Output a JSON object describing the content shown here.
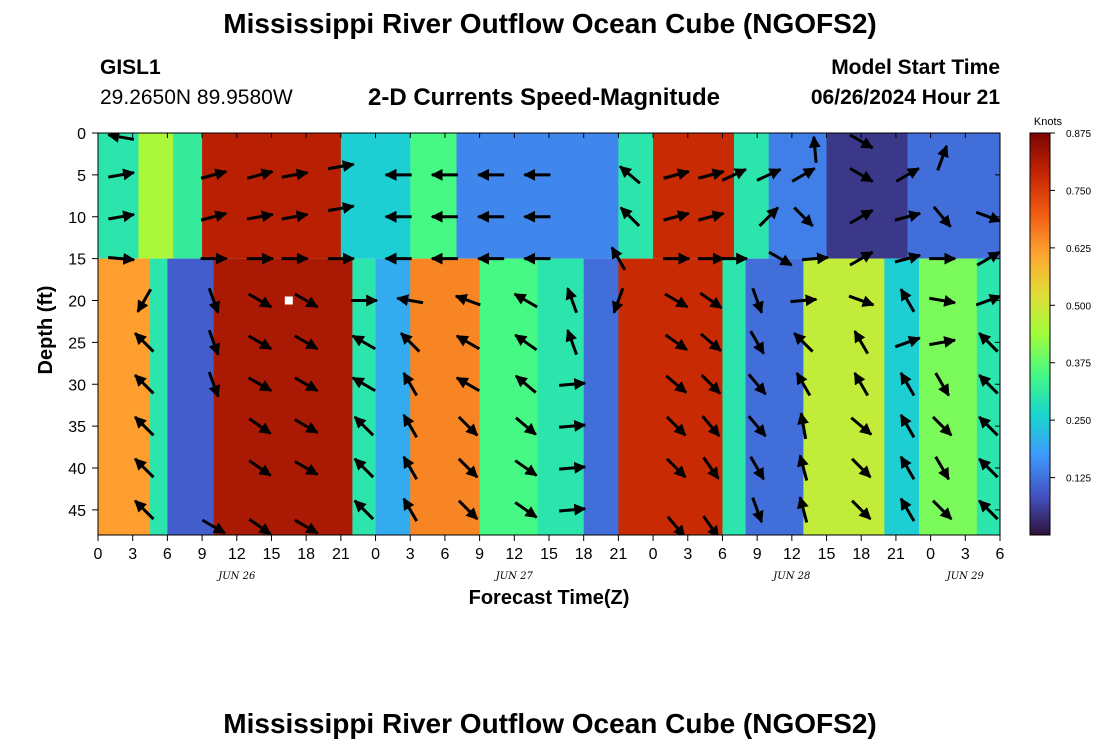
{
  "header": {
    "title": "Mississippi River Outflow Ocean Cube (NGOFS2)",
    "station": "GISL1",
    "coords": "29.2650N  89.9580W",
    "subtitle": "2-D Currents Speed-Magnitude",
    "start_label": "Model Start Time",
    "start_value": "06/26/2024 Hour 21"
  },
  "footer": {
    "title": "Mississippi River Outflow Ocean Cube (NGOFS2)"
  },
  "colors": {
    "scale": [
      "#30123b",
      "#4454c4",
      "#3e9bfe",
      "#18d6cb",
      "#46f884",
      "#a2fc3c",
      "#e1dd37",
      "#fea431",
      "#f05b12",
      "#c42503",
      "#7a0403"
    ]
  },
  "chart_data": {
    "type": "heatmap",
    "title": "2-D Currents Speed-Magnitude",
    "xlabel": "Forecast Time(Z)",
    "ylabel": "Depth (ft)",
    "xlim": [
      0,
      78
    ],
    "ylim": [
      48,
      0
    ],
    "x_ticks": [
      0,
      3,
      6,
      9,
      12,
      15,
      18,
      21,
      24,
      27,
      30,
      33,
      36,
      39,
      42,
      45,
      48,
      51,
      54,
      57,
      60,
      63,
      66,
      69,
      72,
      75,
      78
    ],
    "x_tick_labels": [
      "0",
      "3",
      "6",
      "9",
      "12",
      "15",
      "18",
      "21",
      "0",
      "3",
      "6",
      "9",
      "12",
      "15",
      "18",
      "21",
      "0",
      "3",
      "6",
      "9",
      "12",
      "15",
      "18",
      "21",
      "0",
      "3",
      "6"
    ],
    "date_labels": [
      {
        "x": 12,
        "label": "JUN 26"
      },
      {
        "x": 36,
        "label": "JUN 27"
      },
      {
        "x": 60,
        "label": "JUN 28"
      },
      {
        "x": 75,
        "label": "JUN 29"
      }
    ],
    "y_ticks": [
      0,
      5,
      10,
      15,
      20,
      25,
      30,
      35,
      40,
      45
    ],
    "y_tick_labels": [
      "0",
      "5",
      "10",
      "15",
      "20",
      "25",
      "30",
      "35",
      "40",
      "45"
    ],
    "colorbar": {
      "label": "Knots",
      "min": 0,
      "max": 0.875,
      "ticks": [
        0.125,
        0.25,
        0.375,
        0.5,
        0.625,
        0.75,
        0.875
      ],
      "tick_labels": [
        "0.125",
        "0.250",
        "0.375",
        "0.500",
        "0.625",
        "0.750",
        "0.875"
      ]
    },
    "upper_layer": {
      "depth_range": [
        0,
        15
      ],
      "segments": [
        {
          "x": [
            0,
            3.5
          ],
          "speed": 0.3
        },
        {
          "x": [
            3.5,
            6.5
          ],
          "speed": 0.45
        },
        {
          "x": [
            6.5,
            9
          ],
          "speed": 0.32
        },
        {
          "x": [
            9,
            21
          ],
          "speed": 0.8
        },
        {
          "x": [
            21,
            27
          ],
          "speed": 0.25
        },
        {
          "x": [
            27,
            31
          ],
          "speed": 0.35
        },
        {
          "x": [
            31,
            45
          ],
          "speed": 0.15
        },
        {
          "x": [
            45,
            48
          ],
          "speed": 0.3
        },
        {
          "x": [
            48,
            55
          ],
          "speed": 0.78
        },
        {
          "x": [
            55,
            58
          ],
          "speed": 0.3
        },
        {
          "x": [
            58,
            63
          ],
          "speed": 0.14
        },
        {
          "x": [
            63,
            70
          ],
          "speed": 0.05
        },
        {
          "x": [
            70,
            78
          ],
          "speed": 0.12
        }
      ]
    },
    "lower_layer": {
      "depth_range": [
        15,
        48
      ],
      "segments": [
        {
          "x": [
            0,
            4.5
          ],
          "speed": 0.62
        },
        {
          "x": [
            4.5,
            6
          ],
          "speed": 0.3
        },
        {
          "x": [
            6,
            10
          ],
          "speed": 0.1
        },
        {
          "x": [
            10,
            22
          ],
          "speed": 0.82
        },
        {
          "x": [
            22,
            24
          ],
          "speed": 0.3
        },
        {
          "x": [
            24,
            27
          ],
          "speed": 0.2
        },
        {
          "x": [
            27,
            33
          ],
          "speed": 0.65
        },
        {
          "x": [
            33,
            38
          ],
          "speed": 0.35
        },
        {
          "x": [
            38,
            42
          ],
          "speed": 0.3
        },
        {
          "x": [
            42,
            45
          ],
          "speed": 0.12
        },
        {
          "x": [
            45,
            54
          ],
          "speed": 0.78
        },
        {
          "x": [
            54,
            56
          ],
          "speed": 0.3
        },
        {
          "x": [
            56,
            61
          ],
          "speed": 0.12
        },
        {
          "x": [
            61,
            68
          ],
          "speed": 0.48
        },
        {
          "x": [
            68,
            71
          ],
          "speed": 0.25
        },
        {
          "x": [
            71,
            76
          ],
          "speed": 0.4
        },
        {
          "x": [
            76,
            78
          ],
          "speed": 0.3
        }
      ]
    },
    "vectors": [
      {
        "x": 2,
        "depth": 0.5,
        "dir": 170
      },
      {
        "x": 2,
        "depth": 5,
        "dir": 10
      },
      {
        "x": 2,
        "depth": 10,
        "dir": 10
      },
      {
        "x": 2,
        "depth": 15,
        "dir": -5
      },
      {
        "x": 4,
        "depth": 20,
        "dir": -120
      },
      {
        "x": 4,
        "depth": 25,
        "dir": 135
      },
      {
        "x": 4,
        "depth": 30,
        "dir": 135
      },
      {
        "x": 4,
        "depth": 35,
        "dir": 135
      },
      {
        "x": 4,
        "depth": 40,
        "dir": 135
      },
      {
        "x": 4,
        "depth": 45,
        "dir": 135
      },
      {
        "x": 10,
        "depth": 5,
        "dir": 15
      },
      {
        "x": 10,
        "depth": 10,
        "dir": 15
      },
      {
        "x": 10,
        "depth": 15,
        "dir": 0
      },
      {
        "x": 10,
        "depth": 20,
        "dir": -70
      },
      {
        "x": 10,
        "depth": 25,
        "dir": -70
      },
      {
        "x": 10,
        "depth": 30,
        "dir": -70
      },
      {
        "x": 10,
        "depth": 47,
        "dir": -30
      },
      {
        "x": 14,
        "depth": 5,
        "dir": 15
      },
      {
        "x": 14,
        "depth": 10,
        "dir": 10
      },
      {
        "x": 14,
        "depth": 15,
        "dir": 0
      },
      {
        "x": 14,
        "depth": 20,
        "dir": -30
      },
      {
        "x": 14,
        "depth": 25,
        "dir": -30
      },
      {
        "x": 14,
        "depth": 30,
        "dir": -30
      },
      {
        "x": 14,
        "depth": 35,
        "dir": -35
      },
      {
        "x": 14,
        "depth": 40,
        "dir": -35
      },
      {
        "x": 14,
        "depth": 47,
        "dir": -35
      },
      {
        "x": 17,
        "depth": 5,
        "dir": 10
      },
      {
        "x": 17,
        "depth": 10,
        "dir": 10
      },
      {
        "x": 17,
        "depth": 15,
        "dir": 0
      },
      {
        "x": 18,
        "depth": 20,
        "dir": -30
      },
      {
        "x": 18,
        "depth": 25,
        "dir": -30
      },
      {
        "x": 18,
        "depth": 30,
        "dir": -30
      },
      {
        "x": 18,
        "depth": 35,
        "dir": -30
      },
      {
        "x": 18,
        "depth": 40,
        "dir": -30
      },
      {
        "x": 18,
        "depth": 47,
        "dir": -30
      },
      {
        "x": 21,
        "depth": 4,
        "dir": 10
      },
      {
        "x": 21,
        "depth": 9,
        "dir": 10
      },
      {
        "x": 21,
        "depth": 15,
        "dir": 0
      },
      {
        "x": 23,
        "depth": 20,
        "dir": 0
      },
      {
        "x": 23,
        "depth": 25,
        "dir": 150
      },
      {
        "x": 23,
        "depth": 30,
        "dir": 150
      },
      {
        "x": 23,
        "depth": 35,
        "dir": 135
      },
      {
        "x": 23,
        "depth": 40,
        "dir": 135
      },
      {
        "x": 23,
        "depth": 45,
        "dir": 135
      },
      {
        "x": 26,
        "depth": 5,
        "dir": 180
      },
      {
        "x": 26,
        "depth": 10,
        "dir": 180
      },
      {
        "x": 26,
        "depth": 15,
        "dir": 180
      },
      {
        "x": 27,
        "depth": 20,
        "dir": 170
      },
      {
        "x": 27,
        "depth": 25,
        "dir": 135
      },
      {
        "x": 27,
        "depth": 30,
        "dir": 120
      },
      {
        "x": 27,
        "depth": 35,
        "dir": 120
      },
      {
        "x": 27,
        "depth": 40,
        "dir": 120
      },
      {
        "x": 27,
        "depth": 45,
        "dir": 120
      },
      {
        "x": 30,
        "depth": 5,
        "dir": 180
      },
      {
        "x": 30,
        "depth": 10,
        "dir": 180
      },
      {
        "x": 30,
        "depth": 15,
        "dir": 180
      },
      {
        "x": 32,
        "depth": 20,
        "dir": 160
      },
      {
        "x": 32,
        "depth": 25,
        "dir": 150
      },
      {
        "x": 32,
        "depth": 30,
        "dir": 150
      },
      {
        "x": 32,
        "depth": 35,
        "dir": -45
      },
      {
        "x": 32,
        "depth": 40,
        "dir": -45
      },
      {
        "x": 32,
        "depth": 45,
        "dir": -45
      },
      {
        "x": 34,
        "depth": 5,
        "dir": 180
      },
      {
        "x": 34,
        "depth": 10,
        "dir": 180
      },
      {
        "x": 34,
        "depth": 15,
        "dir": 180
      },
      {
        "x": 37,
        "depth": 20,
        "dir": 150
      },
      {
        "x": 37,
        "depth": 25,
        "dir": 145
      },
      {
        "x": 37,
        "depth": 30,
        "dir": 140
      },
      {
        "x": 37,
        "depth": 35,
        "dir": -40
      },
      {
        "x": 37,
        "depth": 40,
        "dir": -35
      },
      {
        "x": 37,
        "depth": 45,
        "dir": -35
      },
      {
        "x": 38,
        "depth": 5,
        "dir": 180
      },
      {
        "x": 38,
        "depth": 10,
        "dir": 180
      },
      {
        "x": 38,
        "depth": 15,
        "dir": 180
      },
      {
        "x": 41,
        "depth": 20,
        "dir": 110
      },
      {
        "x": 41,
        "depth": 25,
        "dir": 110
      },
      {
        "x": 41,
        "depth": 30,
        "dir": 5
      },
      {
        "x": 41,
        "depth": 35,
        "dir": 5
      },
      {
        "x": 41,
        "depth": 40,
        "dir": 5
      },
      {
        "x": 41,
        "depth": 45,
        "dir": 5
      },
      {
        "x": 45,
        "depth": 20,
        "dir": -110
      },
      {
        "x": 45,
        "depth": 15,
        "dir": 120
      },
      {
        "x": 46,
        "depth": 5,
        "dir": 140
      },
      {
        "x": 46,
        "depth": 10,
        "dir": 135
      },
      {
        "x": 50,
        "depth": 5,
        "dir": 15
      },
      {
        "x": 50,
        "depth": 10,
        "dir": 15
      },
      {
        "x": 50,
        "depth": 15,
        "dir": 0
      },
      {
        "x": 50,
        "depth": 20,
        "dir": -30
      },
      {
        "x": 50,
        "depth": 25,
        "dir": -35
      },
      {
        "x": 50,
        "depth": 30,
        "dir": -40
      },
      {
        "x": 50,
        "depth": 35,
        "dir": -45
      },
      {
        "x": 50,
        "depth": 40,
        "dir": -45
      },
      {
        "x": 50,
        "depth": 47,
        "dir": -50
      },
      {
        "x": 53,
        "depth": 5,
        "dir": 15
      },
      {
        "x": 53,
        "depth": 10,
        "dir": 15
      },
      {
        "x": 53,
        "depth": 15,
        "dir": 0
      },
      {
        "x": 53,
        "depth": 20,
        "dir": -35
      },
      {
        "x": 53,
        "depth": 25,
        "dir": -40
      },
      {
        "x": 53,
        "depth": 30,
        "dir": -45
      },
      {
        "x": 53,
        "depth": 35,
        "dir": -50
      },
      {
        "x": 53,
        "depth": 40,
        "dir": -55
      },
      {
        "x": 53,
        "depth": 47,
        "dir": -55
      },
      {
        "x": 55,
        "depth": 5,
        "dir": 25
      },
      {
        "x": 55,
        "depth": 15,
        "dir": 0
      },
      {
        "x": 57,
        "depth": 20,
        "dir": -70
      },
      {
        "x": 57,
        "depth": 25,
        "dir": -60
      },
      {
        "x": 57,
        "depth": 30,
        "dir": -50
      },
      {
        "x": 57,
        "depth": 35,
        "dir": -50
      },
      {
        "x": 57,
        "depth": 40,
        "dir": -60
      },
      {
        "x": 57,
        "depth": 45,
        "dir": -70
      },
      {
        "x": 58,
        "depth": 5,
        "dir": 25
      },
      {
        "x": 58,
        "depth": 10,
        "dir": 45
      },
      {
        "x": 59,
        "depth": 15,
        "dir": -30
      },
      {
        "x": 61,
        "depth": 5,
        "dir": 30
      },
      {
        "x": 61,
        "depth": 10,
        "dir": -45
      },
      {
        "x": 61,
        "depth": 20,
        "dir": 5
      },
      {
        "x": 61,
        "depth": 25,
        "dir": 135
      },
      {
        "x": 61,
        "depth": 30,
        "dir": 120
      },
      {
        "x": 61,
        "depth": 35,
        "dir": 100
      },
      {
        "x": 61,
        "depth": 40,
        "dir": 105
      },
      {
        "x": 61,
        "depth": 45,
        "dir": 105
      },
      {
        "x": 62,
        "depth": 2,
        "dir": 95
      },
      {
        "x": 62,
        "depth": 15,
        "dir": 5
      },
      {
        "x": 66,
        "depth": 1,
        "dir": -30
      },
      {
        "x": 66,
        "depth": 5,
        "dir": -30
      },
      {
        "x": 66,
        "depth": 10,
        "dir": 30
      },
      {
        "x": 66,
        "depth": 15,
        "dir": 30
      },
      {
        "x": 66,
        "depth": 20,
        "dir": -20
      },
      {
        "x": 66,
        "depth": 25,
        "dir": 120
      },
      {
        "x": 66,
        "depth": 30,
        "dir": 120
      },
      {
        "x": 66,
        "depth": 35,
        "dir": -40
      },
      {
        "x": 66,
        "depth": 40,
        "dir": -45
      },
      {
        "x": 66,
        "depth": 45,
        "dir": -45
      },
      {
        "x": 70,
        "depth": 5,
        "dir": 30
      },
      {
        "x": 70,
        "depth": 10,
        "dir": 15
      },
      {
        "x": 70,
        "depth": 15,
        "dir": 15
      },
      {
        "x": 70,
        "depth": 20,
        "dir": 120
      },
      {
        "x": 70,
        "depth": 25,
        "dir": 20
      },
      {
        "x": 70,
        "depth": 30,
        "dir": 120
      },
      {
        "x": 70,
        "depth": 35,
        "dir": 120
      },
      {
        "x": 70,
        "depth": 40,
        "dir": 120
      },
      {
        "x": 70,
        "depth": 45,
        "dir": 120
      },
      {
        "x": 73,
        "depth": 3,
        "dir": 70
      },
      {
        "x": 73,
        "depth": 10,
        "dir": -50
      },
      {
        "x": 73,
        "depth": 15,
        "dir": 0
      },
      {
        "x": 73,
        "depth": 20,
        "dir": -10
      },
      {
        "x": 73,
        "depth": 25,
        "dir": 10
      },
      {
        "x": 73,
        "depth": 30,
        "dir": -60
      },
      {
        "x": 73,
        "depth": 35,
        "dir": -45
      },
      {
        "x": 73,
        "depth": 40,
        "dir": -60
      },
      {
        "x": 73,
        "depth": 45,
        "dir": -45
      },
      {
        "x": 77,
        "depth": 10,
        "dir": -20
      },
      {
        "x": 77,
        "depth": 15,
        "dir": 30
      },
      {
        "x": 77,
        "depth": 20,
        "dir": 20
      },
      {
        "x": 77,
        "depth": 25,
        "dir": 135
      },
      {
        "x": 77,
        "depth": 30,
        "dir": 135
      },
      {
        "x": 77,
        "depth": 35,
        "dir": 135
      },
      {
        "x": 77,
        "depth": 40,
        "dir": 135
      },
      {
        "x": 77,
        "depth": 45,
        "dir": 135
      }
    ],
    "marker": {
      "x": 16.5,
      "depth": 20
    }
  }
}
